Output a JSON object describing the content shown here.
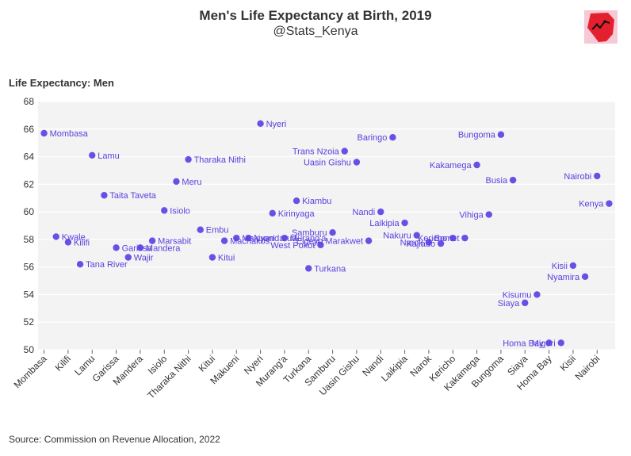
{
  "header": {
    "title": "Men's Life Expectancy at Birth, 2019",
    "subtitle": "@Stats_Kenya",
    "logo_icon": "kenya-map-logo-icon"
  },
  "footer": {
    "source": "Source: Commission on Revenue Allocation, 2022"
  },
  "chart_data": {
    "type": "scatter",
    "title": "Men's Life Expectancy at Birth, 2019",
    "ylabel": "Life Expectancy: Men",
    "xlabel": "",
    "ylim": [
      50,
      68
    ],
    "yticks": [
      50,
      52,
      54,
      56,
      58,
      60,
      62,
      64,
      66,
      68
    ],
    "grid": true,
    "point_color": "#6a4fe6",
    "background_color": "#f3f3f3",
    "x_tick_labels": [
      "Mombasa",
      "Kilifi",
      "Lamu",
      "Garissa",
      "Mandera",
      "Isiolo",
      "Tharaka Nithi",
      "Kitui",
      "Makueni",
      "Nyeri",
      "Murang'a",
      "Turkana",
      "Samburu",
      "Uasin Gishu",
      "Nandi",
      "Laikipia",
      "Narok",
      "Kericho",
      "Kakamega",
      "Bungoma",
      "Siaya",
      "Homa Bay",
      "Kisii",
      "Nairobi"
    ],
    "points": [
      {
        "label": "Mombasa",
        "y": 65.7,
        "pos": "right"
      },
      {
        "label": "Kwale",
        "y": 58.2,
        "pos": "right"
      },
      {
        "label": "Kilifi",
        "y": 57.8,
        "pos": "right"
      },
      {
        "label": "Tana River",
        "y": 56.2,
        "pos": "right"
      },
      {
        "label": "Lamu",
        "y": 64.1,
        "pos": "right"
      },
      {
        "label": "Taita Taveta",
        "y": 61.2,
        "pos": "right"
      },
      {
        "label": "Garissa",
        "y": 57.4,
        "pos": "right"
      },
      {
        "label": "Wajir",
        "y": 56.7,
        "pos": "right"
      },
      {
        "label": "Mandera",
        "y": 57.4,
        "pos": "right"
      },
      {
        "label": "Marsabit",
        "y": 57.9,
        "pos": "right"
      },
      {
        "label": "Isiolo",
        "y": 60.1,
        "pos": "right"
      },
      {
        "label": "Meru",
        "y": 62.2,
        "pos": "right"
      },
      {
        "label": "Tharaka Nithi",
        "y": 63.8,
        "pos": "right"
      },
      {
        "label": "Embu",
        "y": 58.7,
        "pos": "right"
      },
      {
        "label": "Kitui",
        "y": 56.7,
        "pos": "right"
      },
      {
        "label": "Machakos",
        "y": 57.9,
        "pos": "right"
      },
      {
        "label": "Makueni",
        "y": 58.1,
        "pos": "right"
      },
      {
        "label": "Nyandarua",
        "y": 58.1,
        "pos": "right"
      },
      {
        "label": "Nyeri",
        "y": 66.4,
        "pos": "right"
      },
      {
        "label": "Kirinyaga",
        "y": 59.9,
        "pos": "right"
      },
      {
        "label": "Murang'a",
        "y": 58.1,
        "pos": "right"
      },
      {
        "label": "Kiambu",
        "y": 60.8,
        "pos": "right"
      },
      {
        "label": "Turkana",
        "y": 55.9,
        "pos": "right"
      },
      {
        "label": "West Pokot",
        "y": 57.6,
        "pos": "left"
      },
      {
        "label": "Samburu",
        "y": 58.5,
        "pos": "left"
      },
      {
        "label": "Trans Nzoia",
        "y": 64.4,
        "pos": "left"
      },
      {
        "label": "Uasin Gishu",
        "y": 63.6,
        "pos": "left"
      },
      {
        "label": "Elgeyo Marakwet",
        "y": 57.9,
        "pos": "left"
      },
      {
        "label": "Nandi",
        "y": 60.0,
        "pos": "left"
      },
      {
        "label": "Baringo",
        "y": 65.4,
        "pos": "left"
      },
      {
        "label": "Laikipia",
        "y": 59.2,
        "pos": "left"
      },
      {
        "label": "Nakuru",
        "y": 58.3,
        "pos": "left"
      },
      {
        "label": "Narok",
        "y": 57.8,
        "pos": "left"
      },
      {
        "label": "Kajiado",
        "y": 57.7,
        "pos": "left"
      },
      {
        "label": "Kericho",
        "y": 58.1,
        "pos": "left"
      },
      {
        "label": "Bomet",
        "y": 58.1,
        "pos": "left"
      },
      {
        "label": "Kakamega",
        "y": 63.4,
        "pos": "left"
      },
      {
        "label": "Vihiga",
        "y": 59.8,
        "pos": "left"
      },
      {
        "label": "Bungoma",
        "y": 65.6,
        "pos": "left"
      },
      {
        "label": "Busia",
        "y": 62.3,
        "pos": "left"
      },
      {
        "label": "Siaya",
        "y": 53.4,
        "pos": "left"
      },
      {
        "label": "Kisumu",
        "y": 54.0,
        "pos": "left"
      },
      {
        "label": "Homa Bay",
        "y": 50.5,
        "pos": "left"
      },
      {
        "label": "Migori",
        "y": 50.5,
        "pos": "left"
      },
      {
        "label": "Kisii",
        "y": 56.1,
        "pos": "left"
      },
      {
        "label": "Nyamira",
        "y": 55.3,
        "pos": "left"
      },
      {
        "label": "Nairobi",
        "y": 62.6,
        "pos": "left"
      },
      {
        "label": "Kenya",
        "y": 60.6,
        "pos": "left"
      }
    ]
  }
}
